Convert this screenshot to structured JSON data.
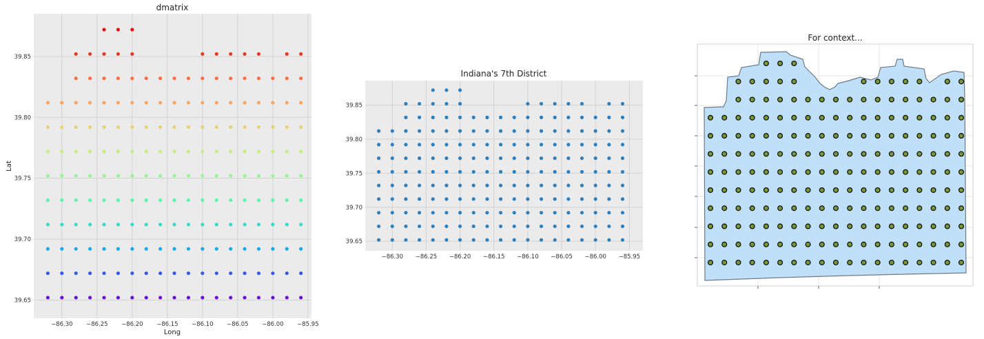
{
  "chart_data": [
    {
      "type": "scatter",
      "title": "dmatrix",
      "xlabel": "Long",
      "ylabel": "Lat",
      "xlim": [
        -86.34,
        -85.945
      ],
      "ylim": [
        39.635,
        39.885
      ],
      "xticks": [
        -86.3,
        -86.25,
        -86.2,
        -86.15,
        -86.1,
        -86.05,
        -86.0,
        -85.95
      ],
      "xtick_labels": [
        "−86.30",
        "−86.25",
        "−86.20",
        "−86.15",
        "−86.10",
        "−86.05",
        "−86.00",
        "−85.95"
      ],
      "yticks": [
        39.65,
        39.7,
        39.75,
        39.8,
        39.85
      ],
      "ytick_labels": [
        "39.65",
        "39.70",
        "39.75",
        "39.80",
        "39.85"
      ],
      "grid": true,
      "background": "#ebebeb",
      "colormap": "rainbow (colored by latitude)",
      "colormap_stops": [
        "#6a0dd8",
        "#2e64ef",
        "#17b8e0",
        "#3ee9c8",
        "#74f7a4",
        "#b3f58a",
        "#dde27a",
        "#f8b56c",
        "#fc7a4a",
        "#f03a22",
        "#e81010"
      ],
      "rows": [
        {
          "lat": 39.652,
          "lon_start": -86.32,
          "lon_end": -85.96,
          "step": 0.02
        },
        {
          "lat": 39.672,
          "lon_start": -86.32,
          "lon_end": -85.96,
          "step": 0.02
        },
        {
          "lat": 39.692,
          "lon_start": -86.32,
          "lon_end": -85.96,
          "step": 0.02
        },
        {
          "lat": 39.712,
          "lon_start": -86.32,
          "lon_end": -85.96,
          "step": 0.02
        },
        {
          "lat": 39.732,
          "lon_start": -86.32,
          "lon_end": -85.96,
          "step": 0.02
        },
        {
          "lat": 39.752,
          "lon_start": -86.32,
          "lon_end": -85.96,
          "step": 0.02
        },
        {
          "lat": 39.772,
          "lon_start": -86.32,
          "lon_end": -85.96,
          "step": 0.02
        },
        {
          "lat": 39.792,
          "lon_start": -86.32,
          "lon_end": -85.96,
          "step": 0.02
        },
        {
          "lat": 39.812,
          "lon_start": -86.32,
          "lon_end": -85.96,
          "step": 0.02
        },
        {
          "lat": 39.832,
          "lon_start": -86.28,
          "lon_end": -85.96,
          "step": 0.02
        },
        {
          "lat": 39.852,
          "lon_list": [
            -86.28,
            -86.26,
            -86.24,
            -86.22,
            -86.2,
            -86.1,
            -86.08,
            -86.06,
            -86.04,
            -86.02,
            -85.98,
            -85.96
          ]
        },
        {
          "lat": 39.872,
          "lon_list": [
            -86.24,
            -86.22,
            -86.2
          ]
        }
      ]
    },
    {
      "type": "scatter",
      "title": "Indiana's 7th District",
      "xlim": [
        -86.34,
        -85.93
      ],
      "ylim": [
        39.636,
        39.886
      ],
      "xticks": [
        -86.3,
        -86.25,
        -86.2,
        -86.15,
        -86.1,
        -86.05,
        -86.0,
        -85.95
      ],
      "xtick_labels": [
        "−86.30",
        "−86.25",
        "−86.20",
        "−86.15",
        "−86.10",
        "−86.05",
        "−86.00",
        "−85.95"
      ],
      "yticks": [
        39.65,
        39.7,
        39.75,
        39.8,
        39.85
      ],
      "ytick_labels": [
        "39.65",
        "39.70",
        "39.75",
        "39.80",
        "39.85"
      ],
      "grid": true,
      "background": "#ebebeb",
      "point_color": "#2f7fbd",
      "rows_ref": "same points as dmatrix"
    },
    {
      "type": "scatter",
      "title": "For context...",
      "grid": true,
      "background": "#ffffff",
      "polygon_fill": "#bfe0f8",
      "polygon_stroke": "#6c7a86",
      "point_fill": "#7a9a3a",
      "point_edge": "#111111",
      "rows_ref": "same points as dmatrix over district polygon"
    }
  ]
}
